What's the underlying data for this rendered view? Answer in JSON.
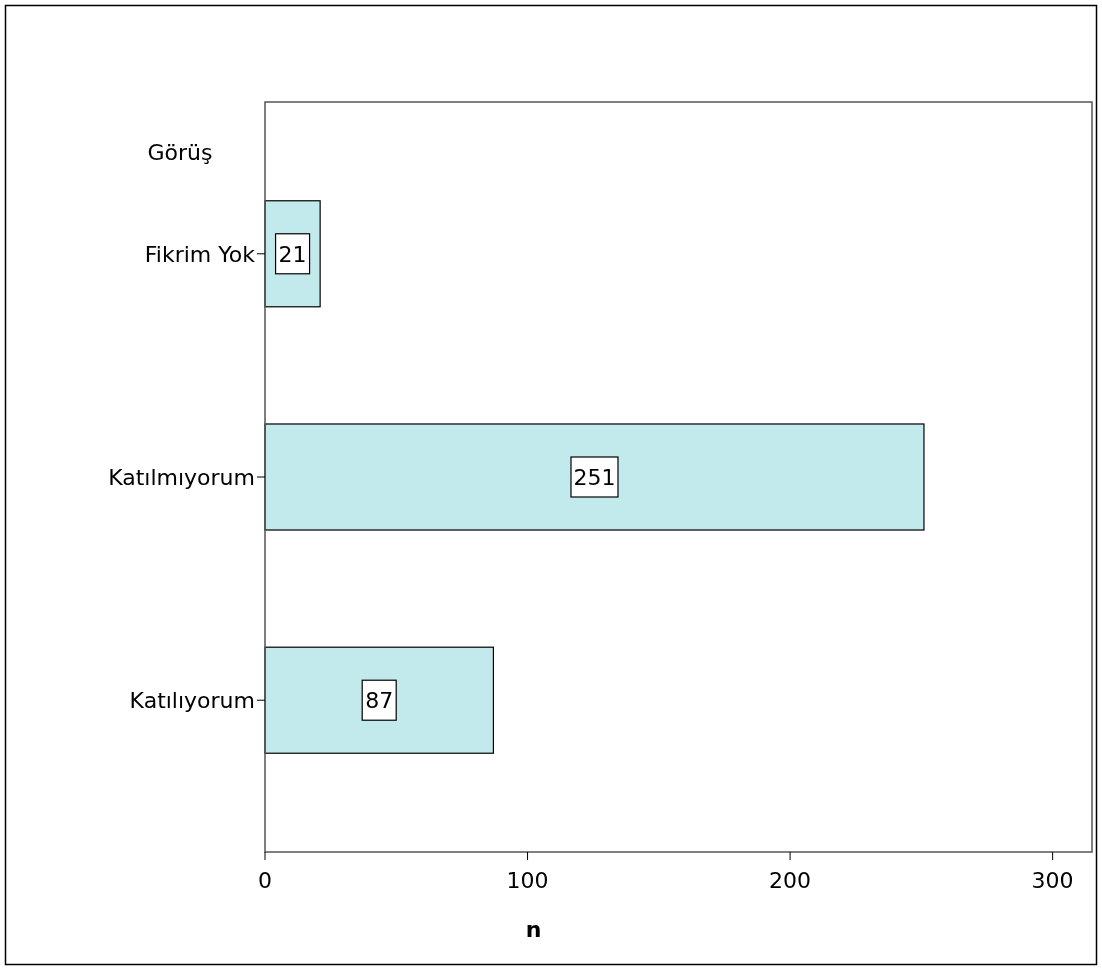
{
  "chart_data": {
    "type": "bar",
    "orientation": "horizontal",
    "ylabel": "Görüş",
    "xlabel": "n",
    "categories": [
      "Fikrim Yok",
      "Katılmıyorum",
      "Katılıyorum"
    ],
    "values": [
      21,
      251,
      87
    ],
    "color": "#c2eaec",
    "xlim": [
      0,
      315
    ],
    "xticks": [
      0,
      100,
      200,
      300
    ],
    "data_labels": true,
    "grid": false
  }
}
